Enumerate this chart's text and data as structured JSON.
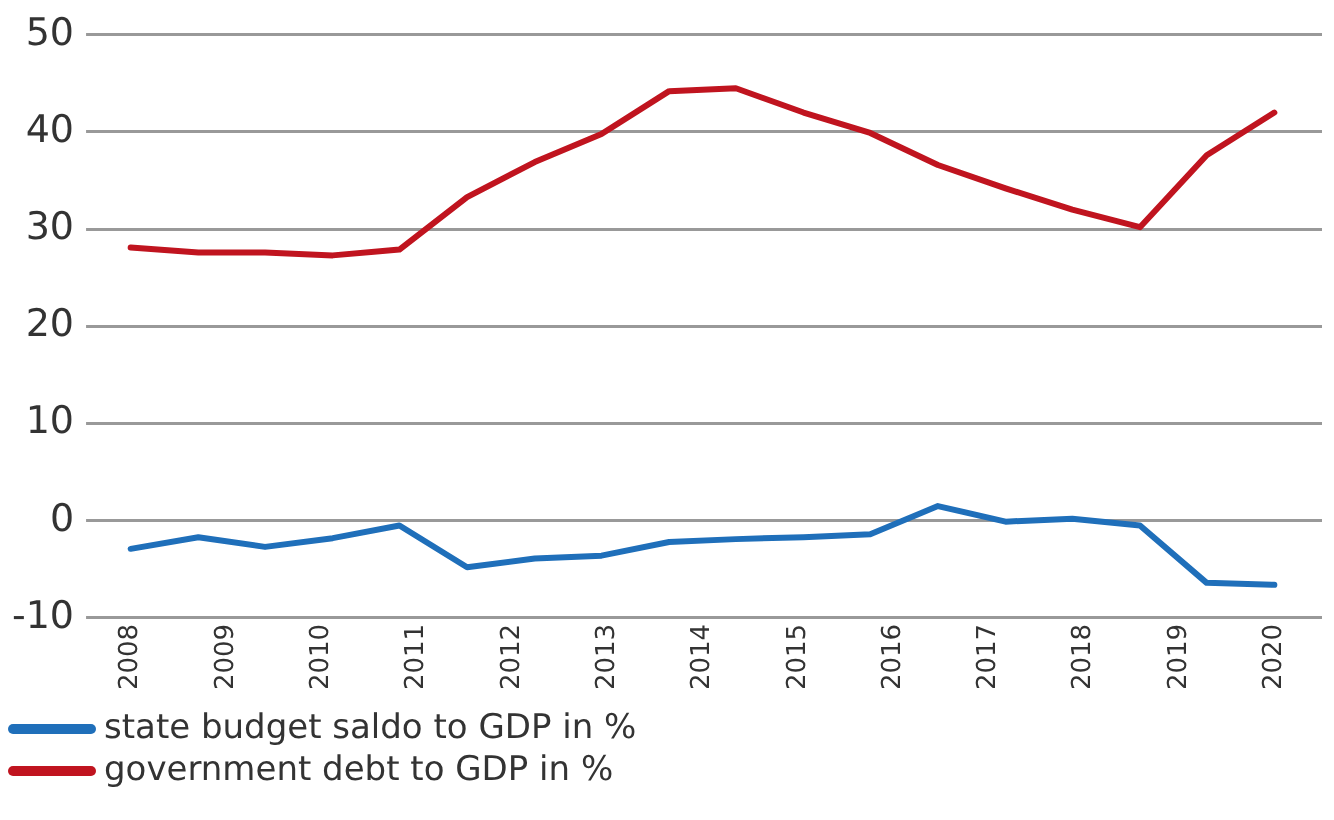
{
  "chart_data": {
    "type": "line",
    "x": [
      2008,
      2008.71,
      2009.41,
      2010.12,
      2010.82,
      2011.53,
      2012.24,
      2012.94,
      2013.65,
      2014.35,
      2015.06,
      2015.76,
      2016.47,
      2017.18,
      2017.88,
      2018.59,
      2019.29,
      2020
    ],
    "xlim": [
      2007.7,
      2020.5
    ],
    "xticks": [
      2008,
      2009,
      2010,
      2011,
      2012,
      2013,
      2014,
      2015,
      2016,
      2017,
      2018,
      2019,
      2020
    ],
    "ylim": [
      -10,
      50
    ],
    "yticks": [
      -10,
      0,
      10,
      20,
      30,
      40,
      50
    ],
    "grid": "y",
    "legend": "bottom left",
    "marker": "none",
    "line_style": "solid",
    "series": [
      {
        "name": "state budget saldo to GDP in %",
        "color": "#1f6fba",
        "values": [
          -2.9,
          -1.7,
          -2.7,
          -1.8,
          -0.5,
          -4.8,
          -3.9,
          -3.6,
          -2.2,
          -1.9,
          -1.7,
          -1.4,
          1.5,
          -0.1,
          0.2,
          -0.5,
          -6.4,
          -6.6
        ]
      },
      {
        "name": "government debt to GDP in %",
        "color": "#c0141f",
        "values": [
          28.1,
          27.6,
          27.6,
          27.3,
          27.9,
          33.3,
          36.9,
          39.8,
          44.2,
          44.5,
          42.0,
          39.9,
          36.6,
          34.2,
          32.0,
          30.2,
          37.6,
          42.0
        ]
      }
    ]
  }
}
